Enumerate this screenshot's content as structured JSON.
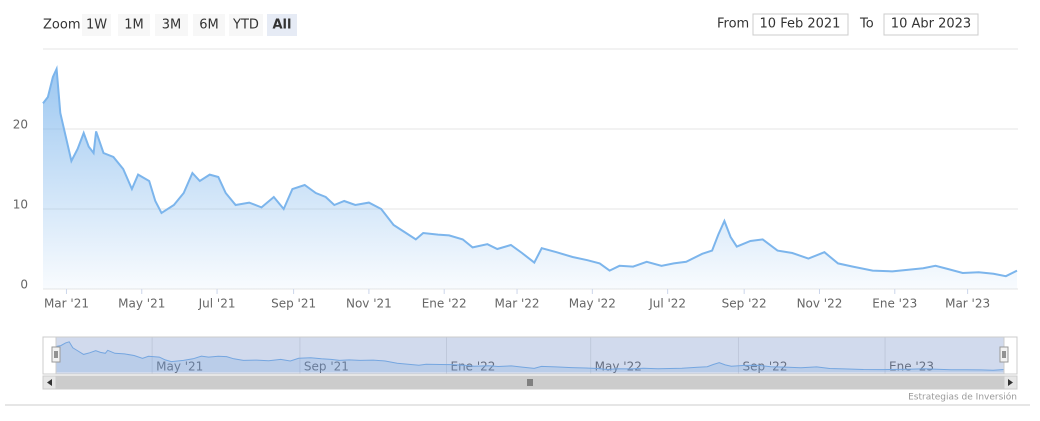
{
  "chart_data": {
    "type": "area",
    "range_selector": {
      "label": "Zoom",
      "buttons": [
        "1W",
        "1M",
        "3M",
        "6M",
        "YTD",
        "All"
      ],
      "selected_index": 5,
      "from_label": "From",
      "from": "10 Feb 2021",
      "to_label": "To",
      "to": "10 Abr 2023"
    },
    "credits": "Estrategias de Inversión",
    "color": "#7cb5ec",
    "grid": true,
    "xlim": [
      "2021-02-10",
      "2023-04-10"
    ],
    "ylim": [
      0,
      30
    ],
    "yticks": [
      0,
      10,
      20
    ],
    "xticks": [
      {
        "value": "2021-03-01",
        "label": "Mar '21"
      },
      {
        "value": "2021-05-01",
        "label": "May '21"
      },
      {
        "value": "2021-07-01",
        "label": "Jul '21"
      },
      {
        "value": "2021-09-01",
        "label": "Sep '21"
      },
      {
        "value": "2021-11-01",
        "label": "Nov '21"
      },
      {
        "value": "2022-01-01",
        "label": "Ene '22"
      },
      {
        "value": "2022-03-01",
        "label": "Mar '22"
      },
      {
        "value": "2022-05-01",
        "label": "May '22"
      },
      {
        "value": "2022-07-01",
        "label": "Jul '22"
      },
      {
        "value": "2022-09-01",
        "label": "Sep '22"
      },
      {
        "value": "2022-11-01",
        "label": "Nov '22"
      },
      {
        "value": "2023-01-01",
        "label": "Ene '23"
      },
      {
        "value": "2023-03-01",
        "label": "Mar '23"
      }
    ],
    "navigator": {
      "xticks": [
        {
          "value": "2021-05-01",
          "label": "May '21"
        },
        {
          "value": "2021-09-01",
          "label": "Sep '21"
        },
        {
          "value": "2022-01-01",
          "label": "Ene '22"
        },
        {
          "value": "2022-05-01",
          "label": "May '22"
        },
        {
          "value": "2022-09-01",
          "label": "Sep '22"
        },
        {
          "value": "2023-01-01",
          "label": "Ene '23"
        }
      ]
    },
    "x": [
      "2021-02-10",
      "2021-02-14",
      "2021-02-18",
      "2021-02-21",
      "2021-02-24",
      "2021-02-27",
      "2021-03-05",
      "2021-03-10",
      "2021-03-15",
      "2021-03-19",
      "2021-03-23",
      "2021-03-25",
      "2021-03-31",
      "2021-04-08",
      "2021-04-16",
      "2021-04-23",
      "2021-04-28",
      "2021-05-07",
      "2021-05-12",
      "2021-05-17",
      "2021-05-27",
      "2021-06-04",
      "2021-06-11",
      "2021-06-17",
      "2021-06-25",
      "2021-07-02",
      "2021-07-08",
      "2021-07-16",
      "2021-07-27",
      "2021-08-06",
      "2021-08-16",
      "2021-08-24",
      "2021-08-31",
      "2021-09-10",
      "2021-09-19",
      "2021-09-27",
      "2021-10-04",
      "2021-10-12",
      "2021-10-21",
      "2021-11-01",
      "2021-11-11",
      "2021-11-21",
      "2021-11-29",
      "2021-12-09",
      "2021-12-15",
      "2021-12-27",
      "2022-01-05",
      "2022-01-16",
      "2022-01-24",
      "2022-02-05",
      "2022-02-13",
      "2022-02-24",
      "2022-03-05",
      "2022-03-15",
      "2022-03-21",
      "2022-04-02",
      "2022-04-15",
      "2022-04-27",
      "2022-05-07",
      "2022-05-15",
      "2022-05-23",
      "2022-06-03",
      "2022-06-14",
      "2022-06-26",
      "2022-07-06",
      "2022-07-16",
      "2022-07-29",
      "2022-08-06",
      "2022-08-11",
      "2022-08-16",
      "2022-08-21",
      "2022-08-26",
      "2022-09-06",
      "2022-09-16",
      "2022-09-28",
      "2022-10-10",
      "2022-10-23",
      "2022-11-05",
      "2022-11-16",
      "2022-11-28",
      "2022-12-14",
      "2022-12-30",
      "2023-01-12",
      "2023-01-24",
      "2023-02-03",
      "2023-02-13",
      "2023-02-25",
      "2023-03-10",
      "2023-03-22",
      "2023-04-01",
      "2023-04-10"
    ],
    "values": [
      23.2,
      24,
      26.5,
      27.5,
      22,
      20,
      16,
      17.5,
      19.5,
      17.8,
      17,
      19.7,
      17,
      16.5,
      15,
      12.5,
      14.3,
      13.5,
      11,
      9.5,
      10.5,
      12,
      14.5,
      13.5,
      14.3,
      14,
      12,
      10.5,
      10.8,
      10.2,
      11.5,
      10,
      12.5,
      13,
      12,
      11.5,
      10.5,
      11,
      10.5,
      10.8,
      10,
      8,
      7.2,
      6.2,
      7,
      6.8,
      6.7,
      6.2,
      5.2,
      5.6,
      5,
      5.5,
      4.5,
      3.3,
      5.1,
      4.6,
      4,
      3.6,
      3.2,
      2.3,
      2.9,
      2.8,
      3.4,
      2.9,
      3.2,
      3.4,
      4.4,
      4.8,
      6.8,
      8.5,
      6.5,
      5.3,
      6,
      6.2,
      4.8,
      4.5,
      3.8,
      4.6,
      3.2,
      2.8,
      2.3,
      2.2,
      2.4,
      2.6,
      2.9,
      2.5,
      2,
      2.1,
      1.9,
      1.6,
      2.3
    ]
  }
}
